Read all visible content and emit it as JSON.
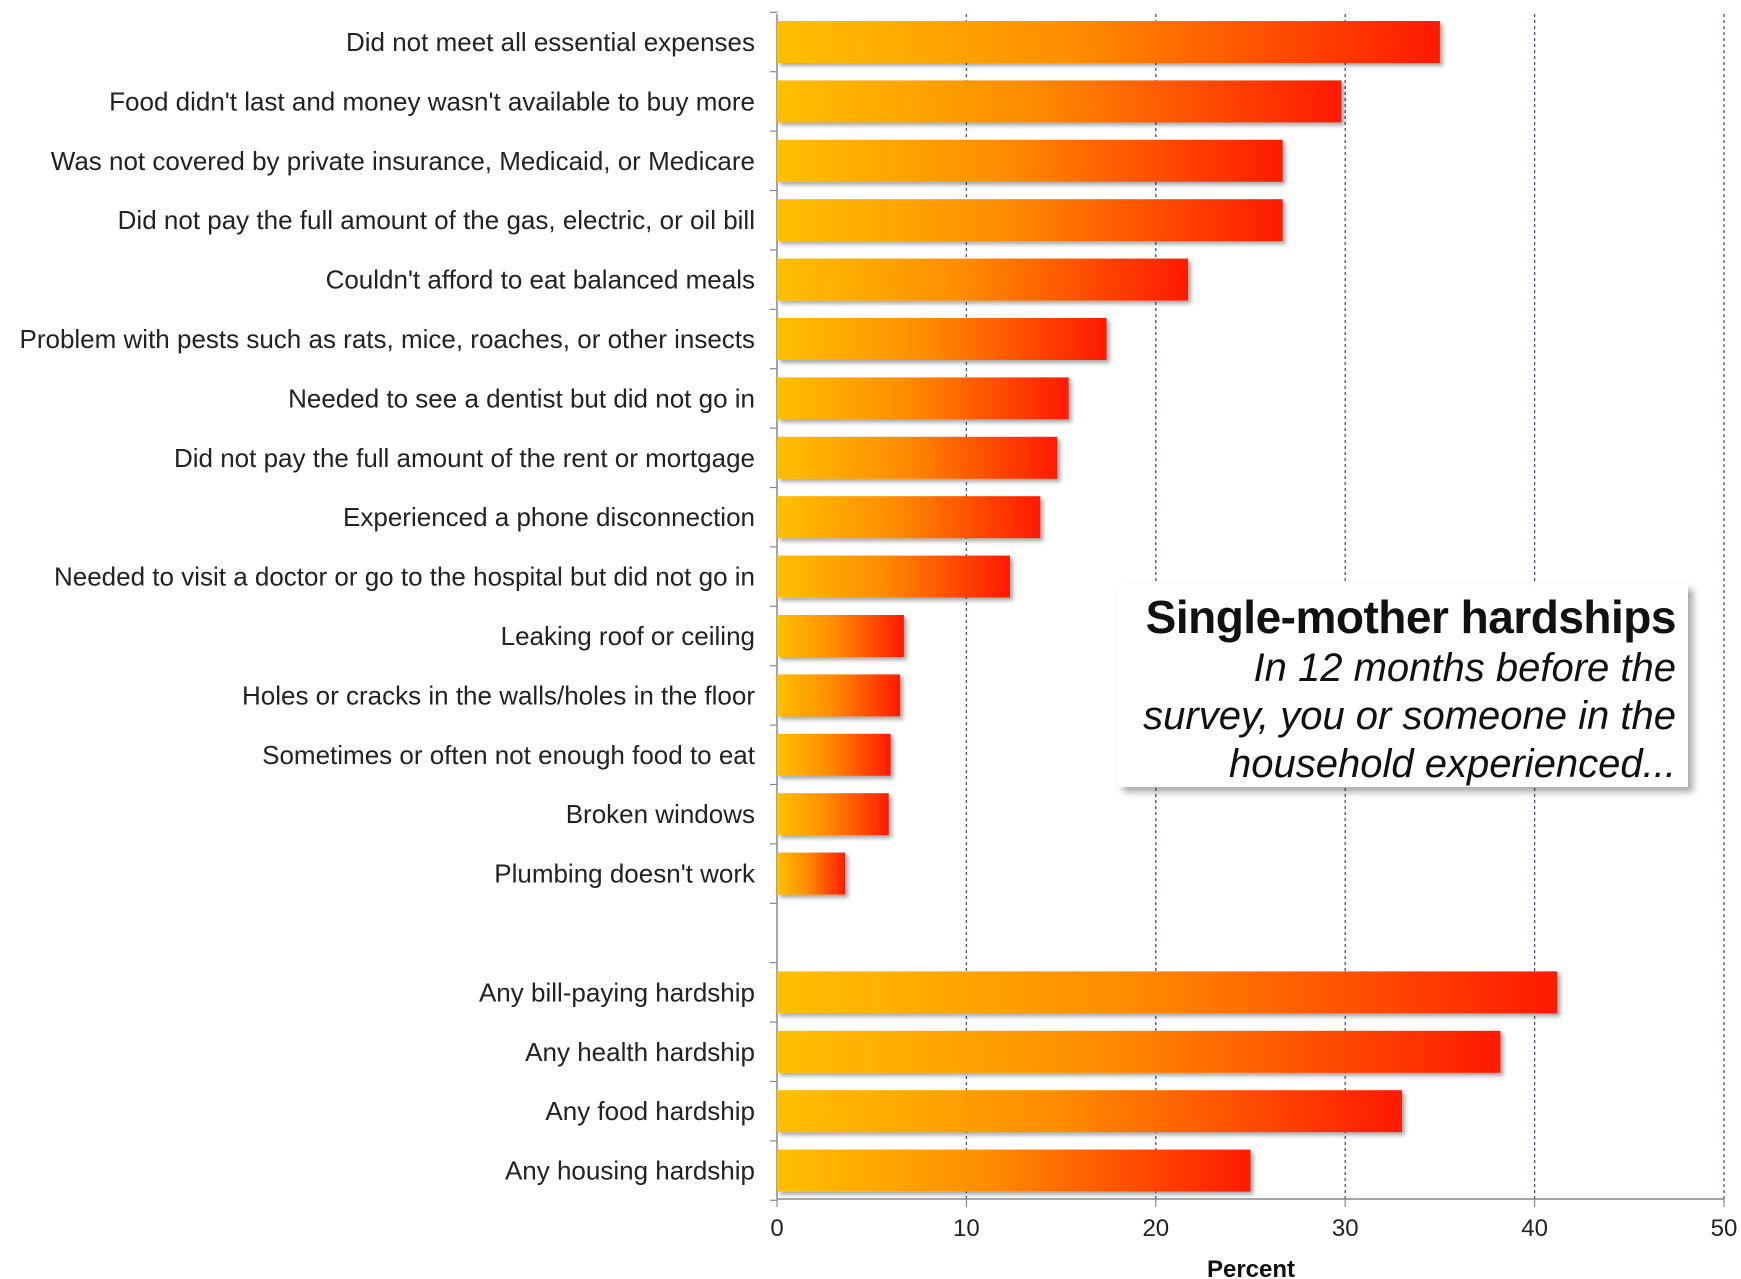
{
  "chart_data": {
    "type": "bar",
    "orientation": "horizontal",
    "title": "Single-mother hardships",
    "subtitle": "In 12 months before the survey, you or someone in the household experienced...",
    "xlabel": "Percent",
    "ylabel": "",
    "xlim": [
      0,
      50
    ],
    "xticks": [
      "0",
      "10",
      "20",
      "30",
      "40",
      "50"
    ],
    "grid": "vertical dotted",
    "legend": "none",
    "colors": {
      "bar_start": "#FFC000",
      "bar_mid": "#FF8C00",
      "bar_end": "#FF1A00",
      "grid": "#2E5E8C",
      "axis": "#888888"
    },
    "categories": [
      "Did not meet all essential expenses",
      "Food didn't last and money wasn't available to buy more",
      "Was not covered by private insurance, Medicaid, or Medicare",
      "Did not pay the full amount of the gas, electric, or oil bill",
      "Couldn't afford to eat balanced meals",
      "Problem with pests such as rats, mice, roaches, or other insects",
      "Needed to see a dentist but did not go in",
      "Did not pay the full amount of the rent or mortgage",
      "Experienced a phone disconnection",
      "Needed to visit a doctor or go to the hospital but did not go in",
      "Leaking roof or ceiling",
      "Holes or cracks in the walls/holes in the floor",
      "Sometimes or often not enough food to eat",
      "Broken windows",
      "Plumbing doesn't work",
      "",
      "Any bill-paying hardship",
      "Any health hardship",
      "Any food hardship",
      "Any housing hardship"
    ],
    "values": [
      35,
      29.8,
      26.7,
      26.7,
      21.7,
      17.4,
      15.4,
      14.8,
      13.9,
      12.3,
      6.7,
      6.5,
      6.0,
      5.9,
      3.6,
      null,
      41.2,
      38.2,
      33.0,
      25.0
    ]
  }
}
